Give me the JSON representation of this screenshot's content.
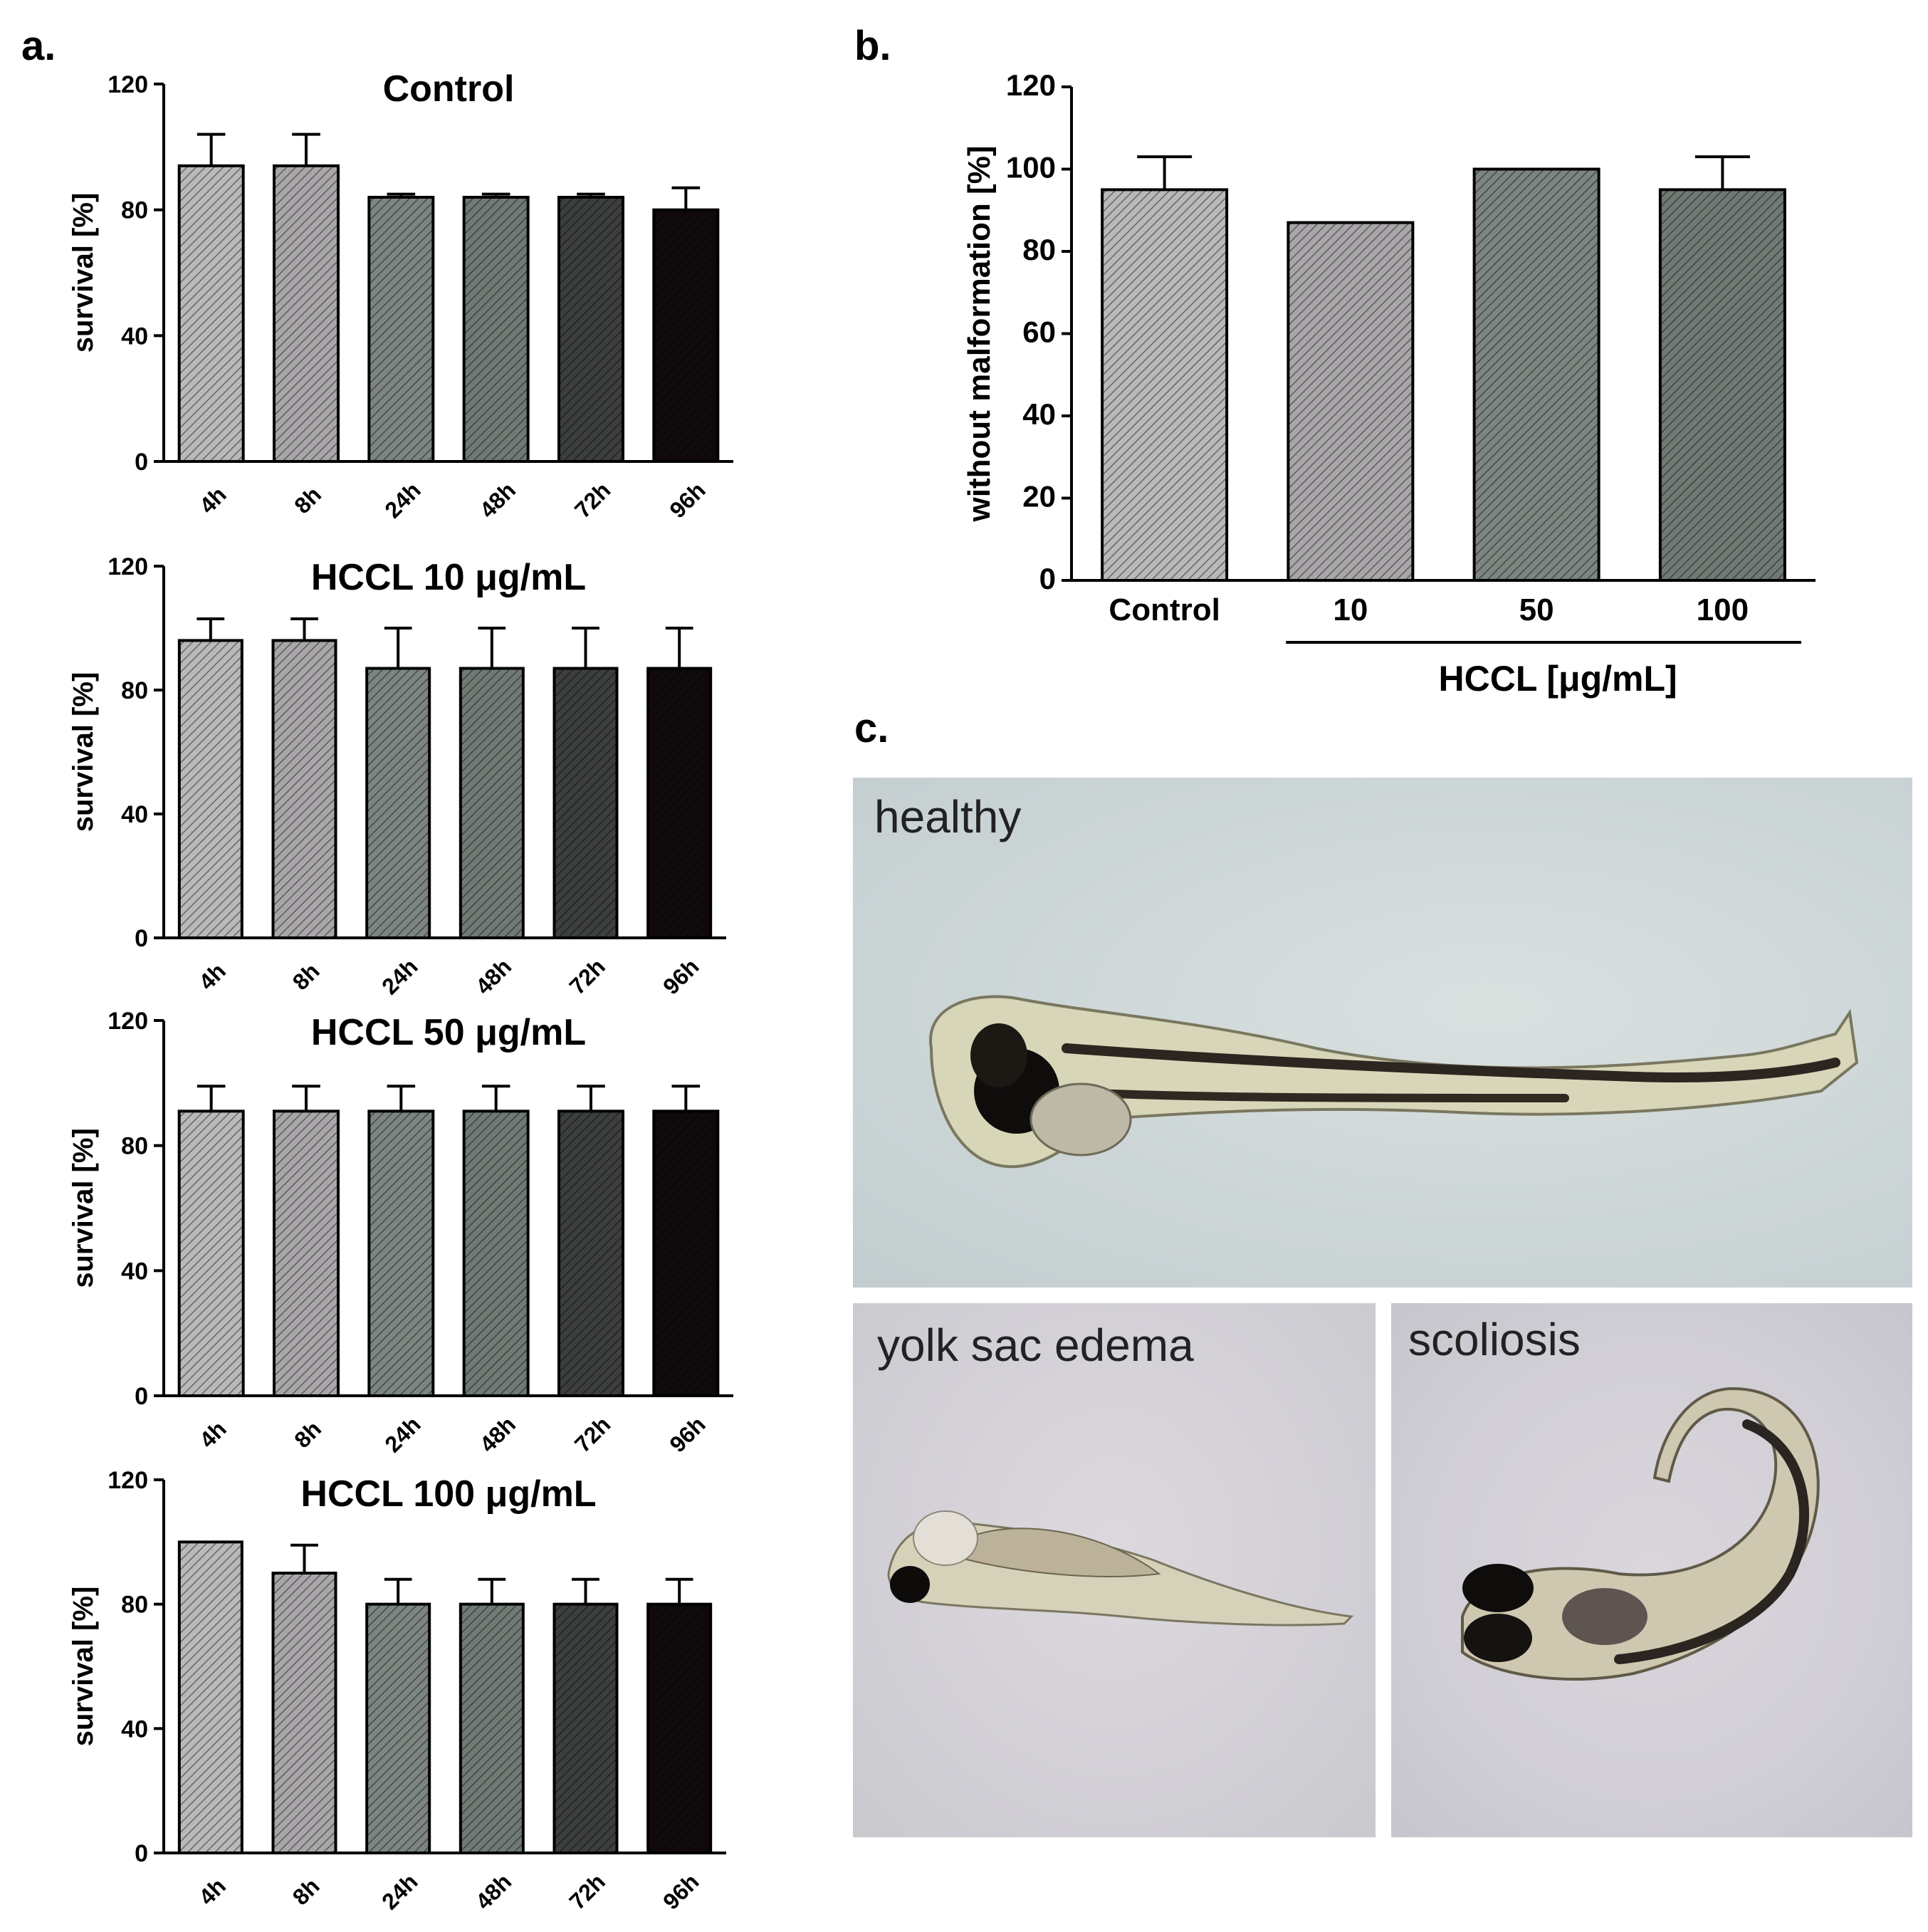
{
  "panel_labels": {
    "a": "a.",
    "b": "b.",
    "c": "c."
  },
  "chart_data": [
    {
      "id": "a1",
      "type": "bar",
      "title": "Control",
      "ylabel": "survival [%]",
      "ylim": [
        0,
        120
      ],
      "yticks": [
        0,
        40,
        80,
        120
      ],
      "categories": [
        "4h",
        "8h",
        "24h",
        "48h",
        "72h",
        "96h"
      ],
      "values": [
        94,
        94,
        84,
        84,
        84,
        80
      ],
      "errors": [
        10,
        10,
        1,
        1,
        1,
        7
      ]
    },
    {
      "id": "a2",
      "type": "bar",
      "title": "HCCL 10 μg/mL",
      "ylabel": "survival [%]",
      "ylim": [
        0,
        120
      ],
      "yticks": [
        0,
        40,
        80,
        120
      ],
      "categories": [
        "4h",
        "8h",
        "24h",
        "48h",
        "72h",
        "96h"
      ],
      "values": [
        96,
        96,
        87,
        87,
        87,
        87
      ],
      "errors": [
        7,
        7,
        13,
        13,
        13,
        13
      ]
    },
    {
      "id": "a3",
      "type": "bar",
      "title": "HCCL 50 μg/mL",
      "ylabel": "survival [%]",
      "ylim": [
        0,
        120
      ],
      "yticks": [
        0,
        40,
        80,
        120
      ],
      "categories": [
        "4h",
        "8h",
        "24h",
        "48h",
        "72h",
        "96h"
      ],
      "values": [
        91,
        91,
        91,
        91,
        91,
        91
      ],
      "errors": [
        8,
        8,
        8,
        8,
        8,
        8
      ]
    },
    {
      "id": "a4",
      "type": "bar",
      "title": "HCCL 100 μg/mL",
      "ylabel": "survival [%]",
      "ylim": [
        0,
        120
      ],
      "yticks": [
        0,
        40,
        80,
        120
      ],
      "categories": [
        "4h",
        "8h",
        "24h",
        "48h",
        "72h",
        "96h"
      ],
      "values": [
        100,
        90,
        80,
        80,
        80,
        80
      ],
      "errors": [
        0,
        9,
        8,
        8,
        8,
        8
      ]
    },
    {
      "id": "b",
      "type": "bar",
      "title": "",
      "ylabel": "without malformation  [%]",
      "ylim": [
        0,
        120
      ],
      "yticks": [
        0,
        20,
        40,
        60,
        80,
        100,
        120
      ],
      "categories": [
        "Control",
        "10",
        "50",
        "100"
      ],
      "values": [
        95,
        87,
        100,
        95
      ],
      "errors": [
        8,
        0,
        0,
        8
      ],
      "group_label": "HCCL [μg/mL]"
    }
  ],
  "bar_colors": {
    "time": [
      "#b9b9b9",
      "#a9a6a9",
      "#7c8580",
      "#6f7a74",
      "#3c3f3e",
      "#100a0c"
    ],
    "dose": [
      "#b9b9b9",
      "#a9a6a9",
      "#7c8580",
      "#6f7a74"
    ]
  },
  "photos": {
    "healthy": "healthy",
    "yolk": "yolk sac edema",
    "scoliosis": "scoliosis"
  }
}
